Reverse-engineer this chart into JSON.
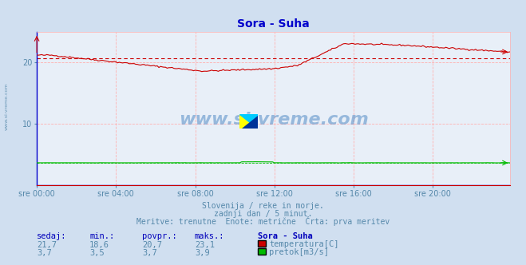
{
  "title": "Sora - Suha",
  "bg_color": "#d0dff0",
  "plot_bg_color": "#e8eff8",
  "grid_color": "#ffb0b0",
  "title_color": "#0000cc",
  "text_color": "#5588aa",
  "ylabel_ticks": [
    10,
    20
  ],
  "ylim_temp": [
    0,
    25
  ],
  "temp_avg": 20.7,
  "temp_min": 18.6,
  "temp_max": 23.1,
  "temp_sedaj": 21.7,
  "flow_avg": 3.7,
  "flow_min": 3.5,
  "flow_max": 3.9,
  "flow_sedaj": 3.7,
  "watermark_text": "www.si-vreme.com",
  "watermark_color": "#3377bb",
  "sub_line1": "Slovenija / reke in morje.",
  "sub_line2": "zadnji dan / 5 minut.",
  "sub_line3": "Meritve: trenutne  Enote: metrične  Črta: prva meritev",
  "label_sedaj": "sedaj:",
  "label_min": "min.:",
  "label_povpr": "povpr.:",
  "label_maks": "maks.:",
  "label_station": "Sora - Suha",
  "label_temp": "temperatura[C]",
  "label_flow": "pretok[m3/s]",
  "temp_color": "#cc0000",
  "flow_color": "#00bb00",
  "blue_baseline_color": "#0000cc",
  "avg_line_color": "#cc0000",
  "left_spine_color": "#0000cc",
  "xlabel_times": [
    "sre 00:00",
    "sre 04:00",
    "sre 08:00",
    "sre 12:00",
    "sre 16:00",
    "sre 20:00"
  ],
  "n_points": 288,
  "grid_linestyle": "--"
}
